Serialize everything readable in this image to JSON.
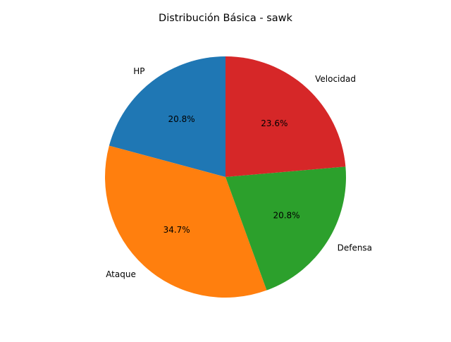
{
  "chart_data": {
    "type": "pie",
    "title": "Distribución Básica - sawk",
    "categories": [
      "HP",
      "Ataque",
      "Defensa",
      "Velocidad"
    ],
    "values": [
      20.8,
      34.7,
      20.8,
      23.6
    ],
    "value_labels": [
      "20.8%",
      "34.7%",
      "20.8%",
      "23.6%"
    ],
    "colors": [
      "#1f77b4",
      "#ff7f0e",
      "#2ca02c",
      "#d62728"
    ],
    "start_angle_deg": 90,
    "direction": "counterclockwise",
    "legend": "none"
  }
}
